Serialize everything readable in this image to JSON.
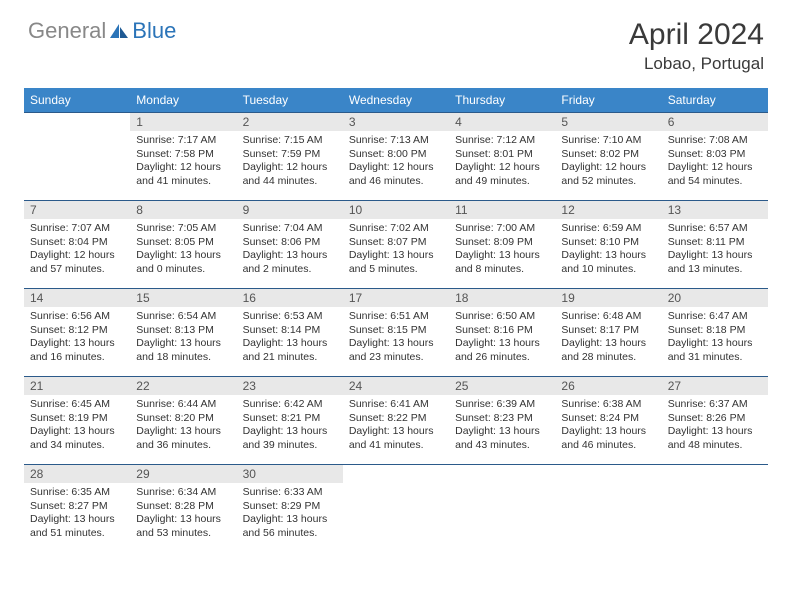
{
  "logo": {
    "gray": "General",
    "blue": "Blue"
  },
  "title": "April 2024",
  "location": "Lobao, Portugal",
  "colors": {
    "header_bg": "#3a85c8",
    "header_fg": "#ffffff",
    "daynum_bg": "#e8e8e8",
    "daynum_fg": "#555555",
    "border": "#2b5a8a",
    "logo_gray": "#888888",
    "logo_blue": "#2b74b8"
  },
  "weekdays": [
    "Sunday",
    "Monday",
    "Tuesday",
    "Wednesday",
    "Thursday",
    "Friday",
    "Saturday"
  ],
  "weeks": [
    [
      null,
      {
        "n": "1",
        "sr": "7:17 AM",
        "ss": "7:58 PM",
        "dl": "12 hours and 41 minutes."
      },
      {
        "n": "2",
        "sr": "7:15 AM",
        "ss": "7:59 PM",
        "dl": "12 hours and 44 minutes."
      },
      {
        "n": "3",
        "sr": "7:13 AM",
        "ss": "8:00 PM",
        "dl": "12 hours and 46 minutes."
      },
      {
        "n": "4",
        "sr": "7:12 AM",
        "ss": "8:01 PM",
        "dl": "12 hours and 49 minutes."
      },
      {
        "n": "5",
        "sr": "7:10 AM",
        "ss": "8:02 PM",
        "dl": "12 hours and 52 minutes."
      },
      {
        "n": "6",
        "sr": "7:08 AM",
        "ss": "8:03 PM",
        "dl": "12 hours and 54 minutes."
      }
    ],
    [
      {
        "n": "7",
        "sr": "7:07 AM",
        "ss": "8:04 PM",
        "dl": "12 hours and 57 minutes."
      },
      {
        "n": "8",
        "sr": "7:05 AM",
        "ss": "8:05 PM",
        "dl": "13 hours and 0 minutes."
      },
      {
        "n": "9",
        "sr": "7:04 AM",
        "ss": "8:06 PM",
        "dl": "13 hours and 2 minutes."
      },
      {
        "n": "10",
        "sr": "7:02 AM",
        "ss": "8:07 PM",
        "dl": "13 hours and 5 minutes."
      },
      {
        "n": "11",
        "sr": "7:00 AM",
        "ss": "8:09 PM",
        "dl": "13 hours and 8 minutes."
      },
      {
        "n": "12",
        "sr": "6:59 AM",
        "ss": "8:10 PM",
        "dl": "13 hours and 10 minutes."
      },
      {
        "n": "13",
        "sr": "6:57 AM",
        "ss": "8:11 PM",
        "dl": "13 hours and 13 minutes."
      }
    ],
    [
      {
        "n": "14",
        "sr": "6:56 AM",
        "ss": "8:12 PM",
        "dl": "13 hours and 16 minutes."
      },
      {
        "n": "15",
        "sr": "6:54 AM",
        "ss": "8:13 PM",
        "dl": "13 hours and 18 minutes."
      },
      {
        "n": "16",
        "sr": "6:53 AM",
        "ss": "8:14 PM",
        "dl": "13 hours and 21 minutes."
      },
      {
        "n": "17",
        "sr": "6:51 AM",
        "ss": "8:15 PM",
        "dl": "13 hours and 23 minutes."
      },
      {
        "n": "18",
        "sr": "6:50 AM",
        "ss": "8:16 PM",
        "dl": "13 hours and 26 minutes."
      },
      {
        "n": "19",
        "sr": "6:48 AM",
        "ss": "8:17 PM",
        "dl": "13 hours and 28 minutes."
      },
      {
        "n": "20",
        "sr": "6:47 AM",
        "ss": "8:18 PM",
        "dl": "13 hours and 31 minutes."
      }
    ],
    [
      {
        "n": "21",
        "sr": "6:45 AM",
        "ss": "8:19 PM",
        "dl": "13 hours and 34 minutes."
      },
      {
        "n": "22",
        "sr": "6:44 AM",
        "ss": "8:20 PM",
        "dl": "13 hours and 36 minutes."
      },
      {
        "n": "23",
        "sr": "6:42 AM",
        "ss": "8:21 PM",
        "dl": "13 hours and 39 minutes."
      },
      {
        "n": "24",
        "sr": "6:41 AM",
        "ss": "8:22 PM",
        "dl": "13 hours and 41 minutes."
      },
      {
        "n": "25",
        "sr": "6:39 AM",
        "ss": "8:23 PM",
        "dl": "13 hours and 43 minutes."
      },
      {
        "n": "26",
        "sr": "6:38 AM",
        "ss": "8:24 PM",
        "dl": "13 hours and 46 minutes."
      },
      {
        "n": "27",
        "sr": "6:37 AM",
        "ss": "8:26 PM",
        "dl": "13 hours and 48 minutes."
      }
    ],
    [
      {
        "n": "28",
        "sr": "6:35 AM",
        "ss": "8:27 PM",
        "dl": "13 hours and 51 minutes."
      },
      {
        "n": "29",
        "sr": "6:34 AM",
        "ss": "8:28 PM",
        "dl": "13 hours and 53 minutes."
      },
      {
        "n": "30",
        "sr": "6:33 AM",
        "ss": "8:29 PM",
        "dl": "13 hours and 56 minutes."
      },
      null,
      null,
      null,
      null
    ]
  ],
  "labels": {
    "sunrise": "Sunrise:",
    "sunset": "Sunset:",
    "daylight": "Daylight:"
  }
}
